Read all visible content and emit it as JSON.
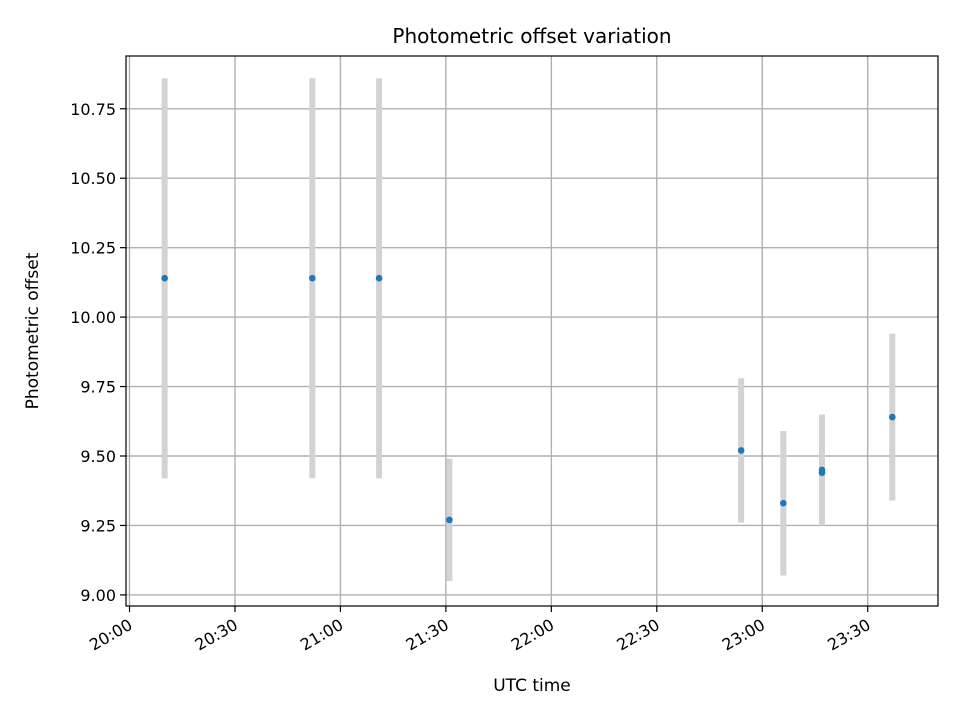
{
  "chart_data": {
    "type": "scatter",
    "title": "Photometric offset variation",
    "xlabel": "UTC time",
    "ylabel": "Photometric offset",
    "grid": true,
    "x_ticks": [
      "20:00",
      "20:30",
      "21:00",
      "21:30",
      "22:00",
      "22:30",
      "23:00",
      "23:30"
    ],
    "y_ticks": [
      "9.00",
      "9.25",
      "9.50",
      "9.75",
      "10.00",
      "10.25",
      "10.50",
      "10.75"
    ],
    "xlim": [
      "19:59",
      "23:50"
    ],
    "ylim": [
      8.96,
      10.94
    ],
    "colors": {
      "point": "#1f77b4",
      "errorbar": "#d3d3d3",
      "grid": "#b0b0b0"
    },
    "series": [
      {
        "points": [
          {
            "time": "20:10",
            "y": 10.14,
            "ylow": 9.42,
            "yhigh": 10.86
          },
          {
            "time": "20:52",
            "y": 10.14,
            "ylow": 9.42,
            "yhigh": 10.86
          },
          {
            "time": "21:11",
            "y": 10.14,
            "ylow": 9.42,
            "yhigh": 10.86
          },
          {
            "time": "21:31",
            "y": 9.27,
            "ylow": 9.05,
            "yhigh": 9.49
          },
          {
            "time": "22:54",
            "y": 9.52,
            "ylow": 9.26,
            "yhigh": 9.78
          },
          {
            "time": "23:06",
            "y": 9.33,
            "ylow": 9.07,
            "yhigh": 9.59
          },
          {
            "time": "23:17",
            "y": 9.44,
            "ylow": 9.25,
            "yhigh": 9.63
          },
          {
            "time": "23:17",
            "y": 9.45,
            "ylow": 9.25,
            "yhigh": 9.65
          },
          {
            "time": "23:37",
            "y": 9.64,
            "ylow": 9.34,
            "yhigh": 9.94
          }
        ]
      }
    ]
  }
}
